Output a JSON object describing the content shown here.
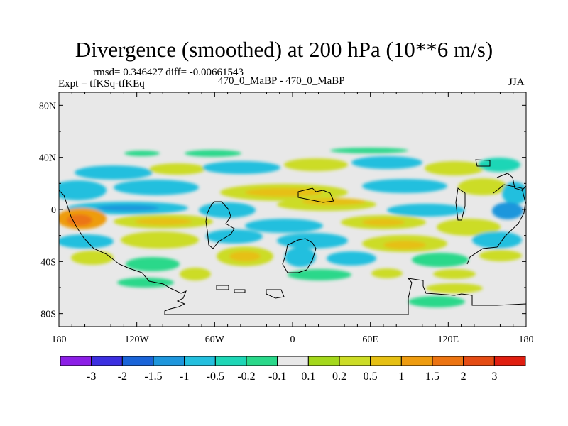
{
  "title": "Divergence (smoothed) at 200 hPa (10**6 m/s)",
  "stats": {
    "rmsd_line": "rmsd= 0.346427 diff= -0.00661543"
  },
  "left_label": "Expt = tfKSq-tfKEq",
  "center_label": "470_0_MaBP - 470_0_MaBP",
  "right_label": "JJA",
  "map": {
    "lat_labels": [
      "80N",
      "40N",
      "0",
      "40S",
      "80S"
    ],
    "lon_labels": [
      "180",
      "120W",
      "60W",
      "0",
      "60E",
      "120E",
      "180"
    ],
    "lat_values": [
      80,
      40,
      0,
      -40,
      -80
    ],
    "lon_values": [
      -180,
      -120,
      -60,
      0,
      60,
      120,
      180
    ],
    "lat_range": [
      -90,
      90
    ],
    "lon_range": [
      -180,
      180
    ]
  },
  "colorbar": {
    "colors": [
      "#8c1fe6",
      "#3c2fe0",
      "#1a64d8",
      "#1e96dc",
      "#24bfde",
      "#1ed6b6",
      "#2ad88a",
      "#e8e8e8",
      "#a4d81c",
      "#ccdc26",
      "#e6c014",
      "#ee9c10",
      "#ec7412",
      "#e44c14",
      "#e01e10"
    ],
    "labels": [
      "-3",
      "-2",
      "-1.5",
      "-1",
      "-0.5",
      "-0.2",
      "-0.1",
      "0.1",
      "0.2",
      "0.5",
      "1",
      "1.5",
      "2",
      "3"
    ]
  }
}
